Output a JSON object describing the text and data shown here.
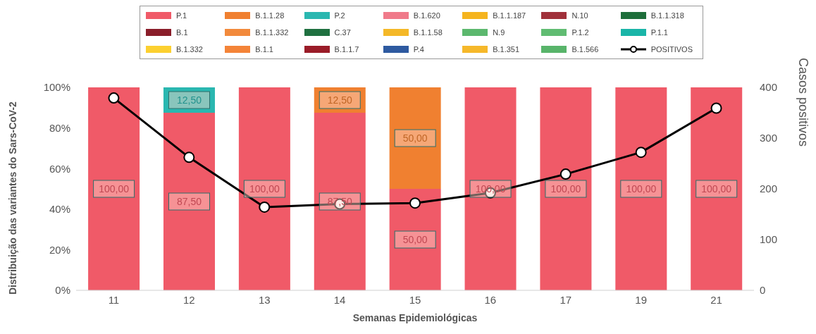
{
  "chart_data": {
    "type": "bar",
    "stacked": true,
    "xlabel": "Semanas Epidemiológicas",
    "ylabel": "Distribuição das variantes do Sars-CoV-2",
    "y2label": "Casos positivos",
    "categories": [
      "11",
      "12",
      "13",
      "14",
      "15",
      "16",
      "17",
      "19",
      "21"
    ],
    "series": [
      {
        "name": "P.1",
        "color": "#f05a68",
        "values": [
          100,
          87.5,
          100,
          87.5,
          50,
          100,
          100,
          100,
          100
        ],
        "value_labels": [
          "100,00",
          "87,50",
          "100,00",
          "87,50",
          "50,00",
          "100,00",
          "100,00",
          "100,00",
          "100,00"
        ]
      },
      {
        "name": "B.1.1.28",
        "color": "#f08030",
        "values": [
          null,
          null,
          null,
          12.5,
          50,
          null,
          null,
          null,
          null
        ],
        "value_labels": [
          null,
          null,
          null,
          "12,50",
          "50,00",
          null,
          null,
          null,
          null
        ]
      },
      {
        "name": "P.2",
        "color": "#2ab7b0",
        "values": [
          null,
          12.5,
          null,
          null,
          null,
          null,
          null,
          null,
          null
        ],
        "value_labels": [
          null,
          "12,50",
          null,
          null,
          null,
          null,
          null,
          null,
          null
        ]
      },
      {
        "name": "B.1.620",
        "color": "#f07a8a",
        "values": [
          null,
          null,
          null,
          null,
          null,
          null,
          null,
          null,
          null
        ]
      },
      {
        "name": "B.1.1.187",
        "color": "#f5b41e",
        "values": [
          null,
          null,
          null,
          null,
          null,
          null,
          null,
          null,
          null
        ]
      },
      {
        "name": "N.10",
        "color": "#a0303a",
        "values": [
          null,
          null,
          null,
          null,
          null,
          null,
          null,
          null,
          null
        ]
      },
      {
        "name": "B.1.1.318",
        "color": "#1e6e3a",
        "values": [
          null,
          null,
          null,
          null,
          null,
          null,
          null,
          null,
          null
        ]
      },
      {
        "name": "B.1",
        "color": "#8a1e2a",
        "values": [
          null,
          null,
          null,
          null,
          null,
          null,
          null,
          null,
          null
        ]
      },
      {
        "name": "B.1.1.332",
        "color": "#f28a3c",
        "values": [
          null,
          null,
          null,
          null,
          null,
          null,
          null,
          null,
          null
        ]
      },
      {
        "name": "C.37",
        "color": "#1f7040",
        "values": [
          null,
          null,
          null,
          null,
          null,
          null,
          null,
          null,
          null
        ]
      },
      {
        "name": "B.1.1.58",
        "color": "#f4b828",
        "values": [
          null,
          null,
          null,
          null,
          null,
          null,
          null,
          null,
          null
        ]
      },
      {
        "name": "N.9",
        "color": "#5cb86e",
        "values": [
          null,
          null,
          null,
          null,
          null,
          null,
          null,
          null,
          null
        ]
      },
      {
        "name": "P.1.2",
        "color": "#60bc72",
        "values": [
          null,
          null,
          null,
          null,
          null,
          null,
          null,
          null,
          null
        ]
      },
      {
        "name": "P.1.1",
        "color": "#1ab5a8",
        "values": [
          null,
          null,
          null,
          null,
          null,
          null,
          null,
          null,
          null
        ]
      },
      {
        "name": "B.1.332",
        "color": "#fcd030",
        "values": [
          null,
          null,
          null,
          null,
          null,
          null,
          null,
          null,
          null
        ]
      },
      {
        "name": "B.1.1",
        "color": "#f48438",
        "values": [
          null,
          null,
          null,
          null,
          null,
          null,
          null,
          null,
          null
        ]
      },
      {
        "name": "B.1.1.7",
        "color": "#9a1c28",
        "values": [
          null,
          null,
          null,
          null,
          null,
          null,
          null,
          null,
          null
        ]
      },
      {
        "name": "P.4",
        "color": "#2e5aa0",
        "values": [
          null,
          null,
          null,
          null,
          null,
          null,
          null,
          null,
          null
        ]
      },
      {
        "name": "B.1.351",
        "color": "#f6b82a",
        "values": [
          null,
          null,
          null,
          null,
          null,
          null,
          null,
          null,
          null
        ]
      },
      {
        "name": "B.1.566",
        "color": "#58b46a",
        "values": [
          null,
          null,
          null,
          null,
          null,
          null,
          null,
          null,
          null
        ]
      },
      {
        "name": "POSITIVOS",
        "type": "line",
        "axis": "y2",
        "color": "#000000",
        "values": [
          379,
          262,
          164,
          170,
          172,
          192,
          229,
          272,
          359
        ]
      }
    ],
    "ylim": [
      0,
      100
    ],
    "yticks": [
      {
        "value": 0,
        "label": "0%"
      },
      {
        "value": 20,
        "label": "20%"
      },
      {
        "value": 40,
        "label": "40%"
      },
      {
        "value": 60,
        "label": "60%"
      },
      {
        "value": 80,
        "label": "80%"
      },
      {
        "value": 100,
        "label": "100%"
      }
    ],
    "y2lim": [
      0,
      400
    ],
    "y2ticks": [
      0,
      100,
      200,
      300,
      400
    ],
    "legend": "top",
    "marker": "circle",
    "line_style": "solid",
    "grid": false
  }
}
